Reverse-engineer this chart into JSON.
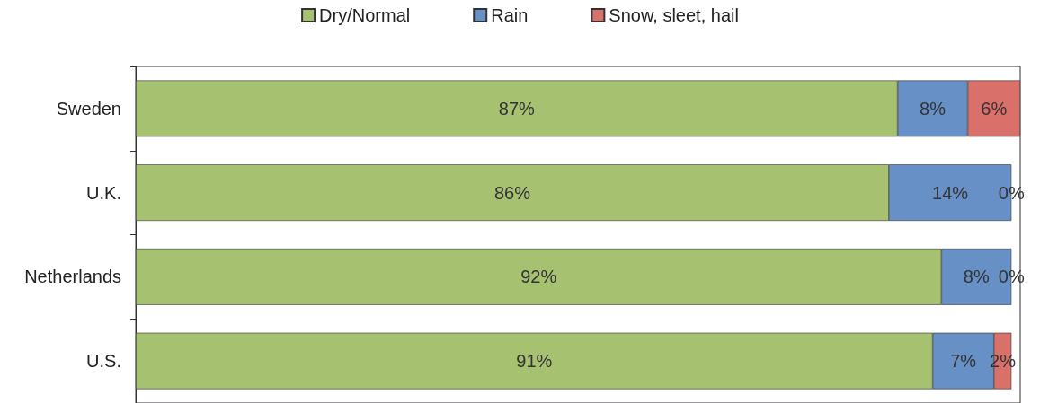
{
  "chart_data": {
    "type": "bar",
    "orientation": "horizontal",
    "stacked": true,
    "legend": "top",
    "tick_labels": "y",
    "categories": [
      "Sweden",
      "U.K.",
      "Netherlands",
      "U.S."
    ],
    "series": [
      {
        "name": "Dry/Normal",
        "color": "#a6c170",
        "values": [
          87,
          86,
          92,
          91
        ],
        "value_labels": [
          "87%",
          "86%",
          "92%",
          "91%"
        ]
      },
      {
        "name": "Rain",
        "color": "#6690c6",
        "values": [
          8,
          14,
          8,
          7
        ],
        "value_labels": [
          "8%",
          "14%",
          "8%",
          "7%"
        ]
      },
      {
        "name": "Snow, sleet, hail",
        "color": "#d9706a",
        "values": [
          6,
          0,
          0,
          2
        ],
        "value_labels": [
          "6%",
          "0%",
          "0%",
          "2%"
        ]
      }
    ]
  }
}
